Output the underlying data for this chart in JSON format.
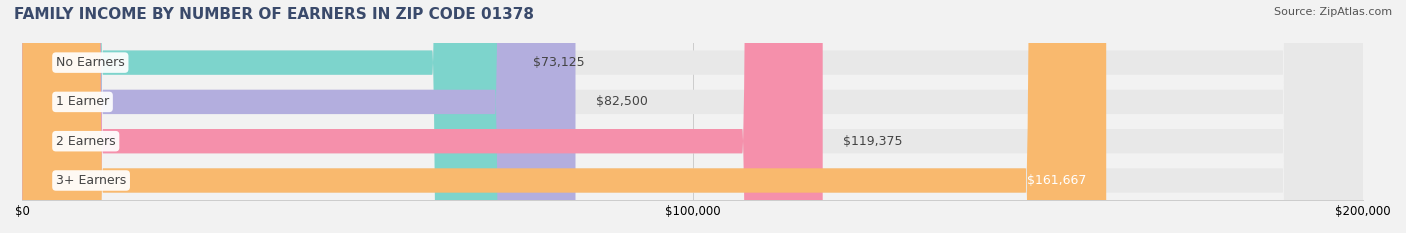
{
  "title": "FAMILY INCOME BY NUMBER OF EARNERS IN ZIP CODE 01378",
  "source": "Source: ZipAtlas.com",
  "categories": [
    "No Earners",
    "1 Earner",
    "2 Earners",
    "3+ Earners"
  ],
  "values": [
    73125,
    82500,
    119375,
    161667
  ],
  "bar_colors": [
    "#7dd4cc",
    "#b3aede",
    "#f590ab",
    "#f9b96e"
  ],
  "label_colors": [
    "#7dd4cc",
    "#b3aede",
    "#f590ab",
    "#f9b96e"
  ],
  "value_labels": [
    "$73,125",
    "$82,500",
    "$119,375",
    "$161,667"
  ],
  "xmax": 200000,
  "background_color": "#f2f2f2",
  "bar_bg_color": "#e8e8e8",
  "title_color": "#3a4a6b",
  "source_color": "#555555",
  "label_text_color": "#444444"
}
